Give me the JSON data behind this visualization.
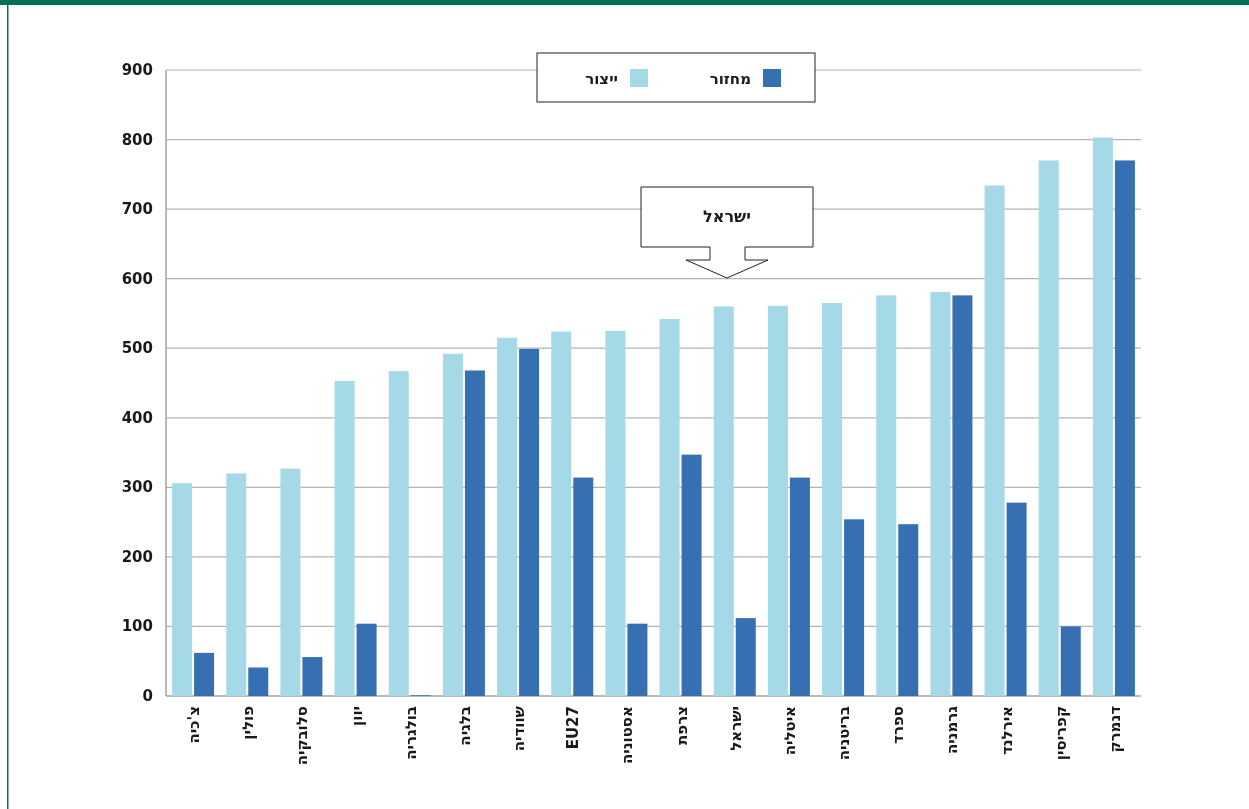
{
  "chart_data": {
    "type": "bar",
    "categories": [
      "צ'כיה",
      "פולין",
      "סלובקיה",
      "יוון",
      "בולגריה",
      "בלגיה",
      "שוודיה",
      "EU27",
      "אסטוניה",
      "צרפת",
      "ישראל",
      "איטליה",
      "בריטניה",
      "ספרד",
      "גרמניה",
      "אירלנד",
      "קפריסין",
      "דנמרק"
    ],
    "series": [
      {
        "name": "ייצור",
        "color": "#a6d9e8",
        "values": [
          306,
          320,
          327,
          453,
          467,
          492,
          515,
          524,
          525,
          542,
          560,
          561,
          565,
          576,
          581,
          734,
          770,
          803
        ]
      },
      {
        "name": "מחזור",
        "color": "#3670b3",
        "values": [
          62,
          41,
          56,
          104,
          1,
          468,
          499,
          314,
          104,
          347,
          112,
          314,
          254,
          247,
          576,
          278,
          100,
          770
        ]
      }
    ],
    "ylim": [
      0,
      900
    ],
    "yticks": [
      0,
      100,
      200,
      300,
      400,
      500,
      600,
      700,
      800,
      900
    ],
    "grid": "y",
    "legend": "top",
    "annotations": [
      "ישראל"
    ]
  }
}
